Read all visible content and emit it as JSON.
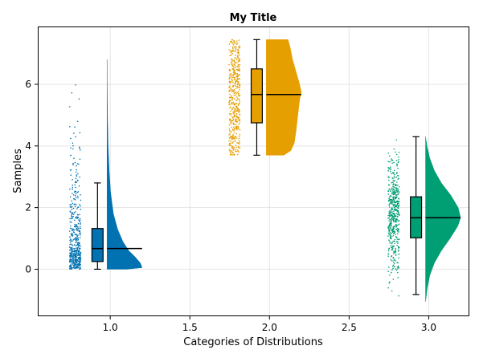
{
  "chart_data": {
    "type": "raincloud",
    "title": "My Title",
    "xlabel": "Categories of Distributions",
    "ylabel": "Samples",
    "xlim": [
      0.55,
      3.25
    ],
    "ylim": [
      -1.5,
      7.85
    ],
    "xticks": [
      1.0,
      1.5,
      2.0,
      2.5,
      3.0
    ],
    "xtick_labels": [
      "1.0",
      "1.5",
      "2.0",
      "2.5",
      "3.0"
    ],
    "yticks": [
      0,
      2,
      4,
      6
    ],
    "ytick_labels": [
      "0",
      "2",
      "4",
      "6"
    ],
    "grid": true,
    "series": [
      {
        "category": 1.0,
        "color": "#0072b2",
        "box": {
          "min": 0.0,
          "q1": 0.25,
          "median": 0.67,
          "q3": 1.32,
          "max": 2.8
        },
        "range": [
          0.0,
          6.8
        ],
        "density": [
          [
            0.0,
            0.55
          ],
          [
            0.05,
            1.0
          ],
          [
            0.2,
            0.95
          ],
          [
            0.4,
            0.8
          ],
          [
            0.6,
            0.62
          ],
          [
            0.9,
            0.45
          ],
          [
            1.3,
            0.3
          ],
          [
            1.8,
            0.18
          ],
          [
            2.5,
            0.1
          ],
          [
            3.2,
            0.06
          ],
          [
            4.0,
            0.03
          ],
          [
            5.0,
            0.012
          ],
          [
            6.0,
            0.004
          ],
          [
            6.8,
            0.0
          ]
        ]
      },
      {
        "category": 2.0,
        "color": "#e69f00",
        "box": {
          "min": 3.7,
          "q1": 4.75,
          "median": 5.67,
          "q3": 6.5,
          "max": 7.45
        },
        "range": [
          3.7,
          7.45
        ],
        "density": [
          [
            3.7,
            0.5
          ],
          [
            3.85,
            0.7
          ],
          [
            4.1,
            0.8
          ],
          [
            4.5,
            0.85
          ],
          [
            5.0,
            0.9
          ],
          [
            5.5,
            0.95
          ],
          [
            5.75,
            1.0
          ],
          [
            6.0,
            0.95
          ],
          [
            6.4,
            0.85
          ],
          [
            6.8,
            0.75
          ],
          [
            7.2,
            0.68
          ],
          [
            7.45,
            0.62
          ]
        ]
      },
      {
        "category": 3.0,
        "color": "#009e73",
        "box": {
          "min": -0.82,
          "q1": 1.02,
          "median": 1.67,
          "q3": 2.35,
          "max": 4.3
        },
        "range": [
          -1.05,
          4.3
        ],
        "density": [
          [
            -1.05,
            0.0
          ],
          [
            -0.6,
            0.05
          ],
          [
            -0.2,
            0.12
          ],
          [
            0.2,
            0.25
          ],
          [
            0.6,
            0.45
          ],
          [
            1.0,
            0.7
          ],
          [
            1.4,
            0.92
          ],
          [
            1.67,
            1.0
          ],
          [
            2.0,
            0.93
          ],
          [
            2.4,
            0.72
          ],
          [
            2.8,
            0.45
          ],
          [
            3.2,
            0.25
          ],
          [
            3.6,
            0.12
          ],
          [
            4.0,
            0.04
          ],
          [
            4.3,
            0.0
          ]
        ]
      }
    ]
  }
}
